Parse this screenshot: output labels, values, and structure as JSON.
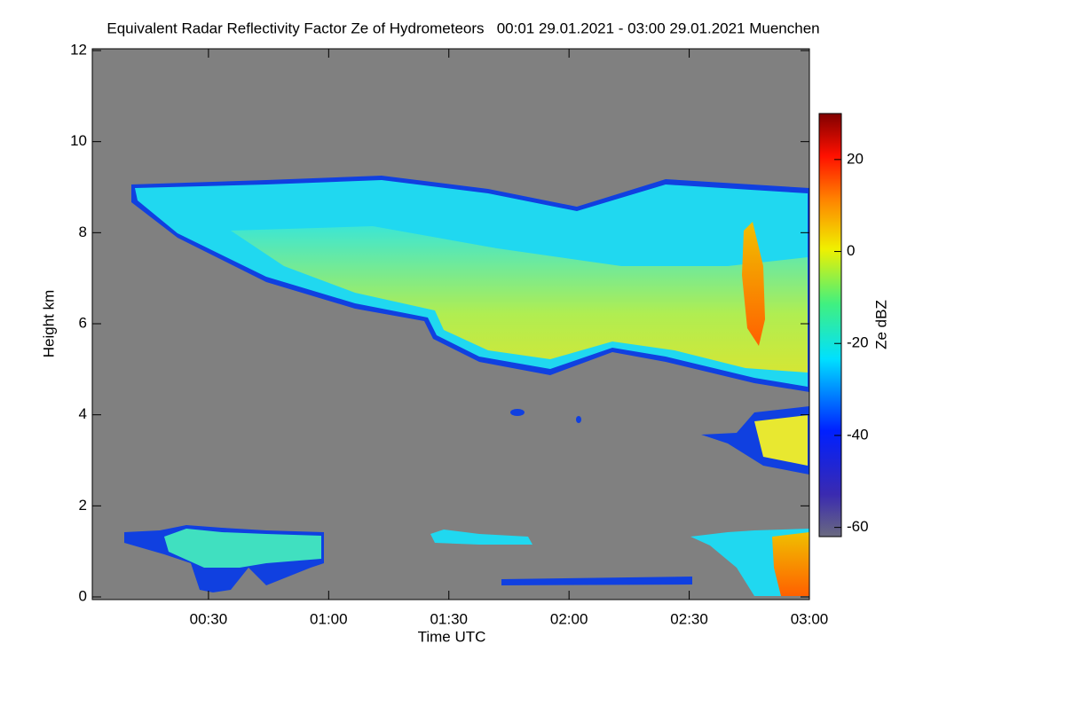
{
  "chart_data": {
    "type": "heatmap",
    "title": "Equivalent Radar Reflectivity Factor Ze of Hydrometeors   00:01 29.01.2021 - 03:00 29.01.2021 Muenchen",
    "x_label": "Time UTC",
    "y_label": "Height km",
    "xlim": [
      1,
      180
    ],
    "xticks": [
      {
        "value": 30,
        "label": "00:30"
      },
      {
        "value": 60,
        "label": "01:00"
      },
      {
        "value": 90,
        "label": "01:30"
      },
      {
        "value": 120,
        "label": "02:00"
      },
      {
        "value": 150,
        "label": "02:30"
      },
      {
        "value": 180,
        "label": "03:00"
      }
    ],
    "ylim": [
      0,
      12
    ],
    "yticks": [
      0,
      2,
      4,
      6,
      8,
      10,
      12
    ],
    "colorbar": {
      "label": "Ze dBZ",
      "lim": [
        -62,
        30
      ],
      "ticks": [
        -60,
        -40,
        -20,
        0,
        20
      ]
    }
  }
}
